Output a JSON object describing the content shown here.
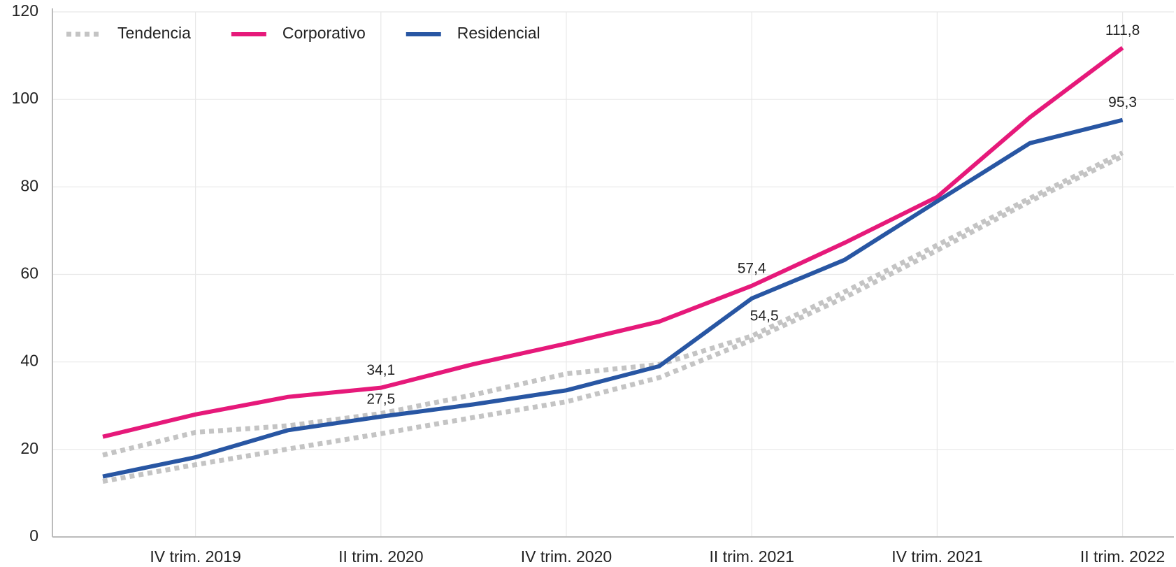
{
  "chart_data": {
    "type": "line",
    "categories": [
      null,
      "IV trim. 2019",
      null,
      "II trim. 2020",
      null,
      "IV trim. 2020",
      null,
      "II trim. 2021",
      null,
      "IV trim. 2021",
      null,
      "II trim. 2022"
    ],
    "series": [
      {
        "name": "Tendencia",
        "color": "#c4c4c4",
        "dashed": true,
        "values": [
          18.7,
          23.9,
          25.4,
          28.2,
          32.5,
          37.3,
          39.4,
          45.9,
          56,
          66.7,
          77.4,
          87.8
        ],
        "lower": [
          12.7,
          16.5,
          20.1,
          23.6,
          27.3,
          30.9,
          36.4,
          45,
          54.7,
          65.5,
          76.7,
          87
        ]
      },
      {
        "name": "Corporativo",
        "color": "#e6197a",
        "values": [
          22.9,
          28,
          32,
          34.1,
          39.5,
          44.2,
          49.2,
          57.4,
          67.2,
          77.7,
          95.9,
          111.8
        ],
        "value_labels": [
          null,
          null,
          null,
          "34,1",
          null,
          null,
          null,
          "57,4",
          null,
          null,
          null,
          "111,8"
        ]
      },
      {
        "name": "Residencial",
        "color": "#2856a3",
        "values": [
          13.8,
          18.2,
          24.4,
          27.5,
          30.3,
          33.5,
          39,
          54.5,
          63.3,
          76.7,
          90,
          95.3
        ],
        "value_labels": [
          null,
          null,
          null,
          "27,5",
          null,
          null,
          null,
          "54,5",
          null,
          null,
          null,
          "95,3"
        ]
      }
    ],
    "ylim": [
      0,
      120
    ],
    "yticks": [
      0,
      20,
      40,
      60,
      80,
      100,
      120
    ],
    "grid": true,
    "legend": "top-left"
  }
}
